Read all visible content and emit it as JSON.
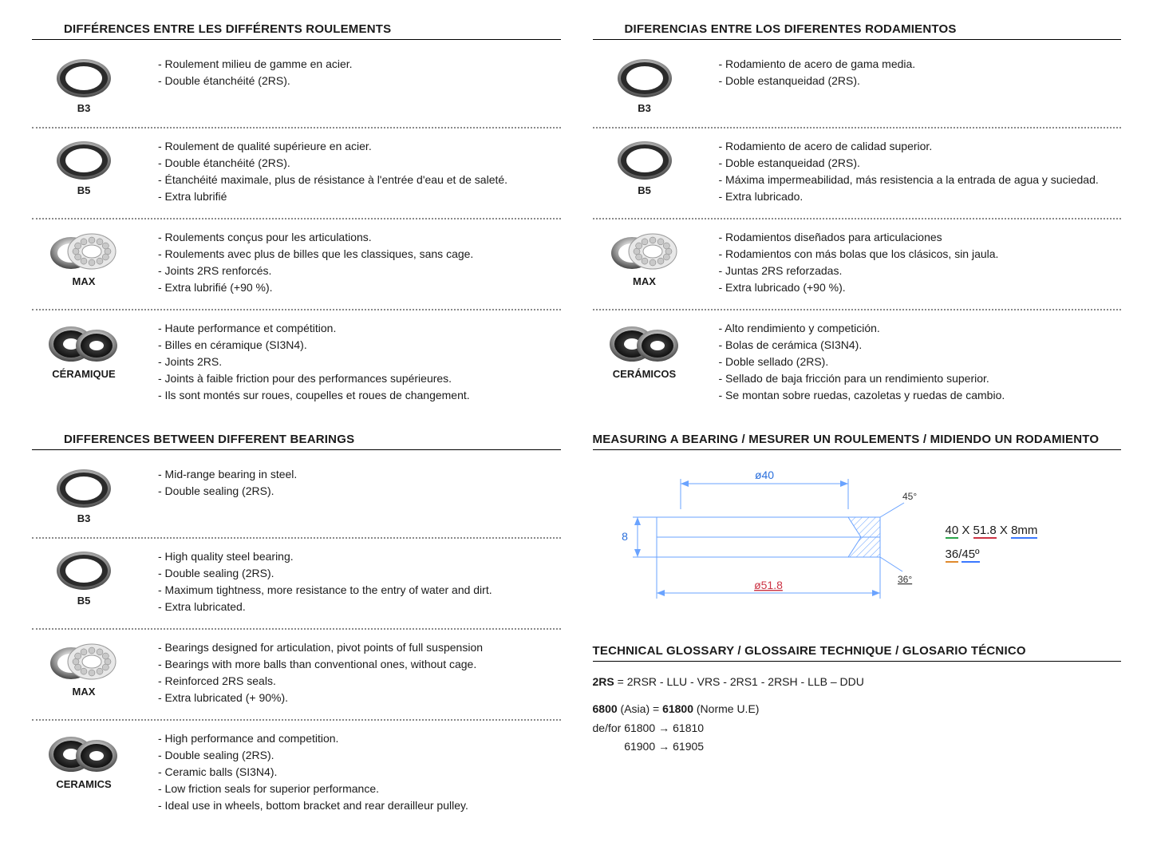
{
  "fr": {
    "title": "DIFFÉRENCES ENTRE LES DIFFÉRENTS ROULEMENTS",
    "items": [
      {
        "label": "B3",
        "icon": "ring-thin",
        "lines": [
          "- Roulement milieu de gamme en acier.",
          "- Double étanchéité (2RS)."
        ]
      },
      {
        "label": "B5",
        "icon": "ring-thin",
        "lines": [
          "- Roulement de qualité supérieure en acier.",
          "- Double étanchéité (2RS).",
          "- Étanchéité maximale, plus de résistance à l'entrée d'eau et de saleté.",
          "- Extra lubrifié"
        ]
      },
      {
        "label": "MAX",
        "icon": "balls",
        "lines": [
          "- Roulements conçus pour les articulations.",
          "- Roulements avec plus de billes que les classiques, sans cage.",
          "- Joints 2RS renforcés.",
          "- Extra lubrifié (+90 %)."
        ]
      },
      {
        "label": "CÉRAMIQUE",
        "icon": "ceramic",
        "lines": [
          "- Haute performance et compétition.",
          "- Billes en céramique (SI3N4).",
          "- Joints 2RS.",
          "- Joints à faible friction pour des performances supérieures.",
          "- Ils sont montés sur roues, coupelles et roues de changement."
        ]
      }
    ]
  },
  "es": {
    "title": "DIFERENCIAS ENTRE LOS DIFERENTES RODAMIENTOS",
    "items": [
      {
        "label": "B3",
        "icon": "ring-thin",
        "lines": [
          "- Rodamiento  de acero de gama media.",
          "- Doble estanqueidad (2RS)."
        ]
      },
      {
        "label": "B5",
        "icon": "ring-thin",
        "lines": [
          "- Rodamiento de acero de calidad superior.",
          "- Doble estanqueidad (2RS).",
          "- Máxima impermeabilidad, más resistencia a la entrada de agua y suciedad.",
          "- Extra lubricado."
        ]
      },
      {
        "label": "MAX",
        "icon": "balls",
        "lines": [
          "- Rodamientos diseñados para articulaciones",
          "- Rodamientos con más bolas que los clásicos, sin jaula.",
          "- Juntas 2RS reforzadas.",
          "- Extra lubricado (+90 %)."
        ]
      },
      {
        "label": "CERÁMICOS",
        "icon": "ceramic",
        "lines": [
          "- Alto rendimiento y competición.",
          "- Bolas de cerámica (SI3N4).",
          "- Doble sellado (2RS).",
          "- Sellado de baja fricción para un rendimiento superior.",
          "- Se montan sobre ruedas, cazoletas y ruedas de cambio."
        ]
      }
    ]
  },
  "en": {
    "title": "DIFFERENCES BETWEEN DIFFERENT BEARINGS",
    "items": [
      {
        "label": "B3",
        "icon": "ring-thin",
        "lines": [
          "- Mid-range bearing in steel.",
          "- Double sealing (2RS)."
        ]
      },
      {
        "label": "B5",
        "icon": "ring-thin",
        "lines": [
          "- High quality steel bearing.",
          "- Double sealing (2RS).",
          "- Maximum tightness, more resistance to the entry of water and dirt.",
          "- Extra lubricated."
        ]
      },
      {
        "label": "MAX",
        "icon": "balls",
        "lines": [
          "- Bearings designed for articulation, pivot points of full suspension",
          "- Bearings with more balls than conventional ones, without cage.",
          "- Reinforced 2RS seals.",
          "- Extra lubricated (+ 90%)."
        ]
      },
      {
        "label": "CERAMICS",
        "icon": "ceramic",
        "lines": [
          "- High performance and competition.",
          "- Double sealing (2RS).",
          "- Ceramic balls (SI3N4).",
          "- Low friction seals for superior performance.",
          "- Ideal use in wheels, bottom bracket and rear derailleur pulley."
        ]
      }
    ]
  },
  "measure": {
    "title": "MEASURING A BEARING / MESURER UN ROULEMENTS / MIDIENDO UN RODAMIENTO",
    "dim_top": "ø40",
    "dim_bottom": "ø51.8",
    "dim_left": "8",
    "dim_right_top": "45°",
    "dim_right_bottom": "36°",
    "text1_a": "40",
    "text1_sep1": " X ",
    "text1_b": "51.8",
    "text1_sep2": " X ",
    "text1_c": "8mm",
    "text2_a": "36",
    "text2_sep": "/",
    "text2_b": "45º"
  },
  "glossary": {
    "title": "TECHNICAL GLOSSARY / GLOSSAIRE TECHNIQUE / GLOSARIO TÉCNICO",
    "line1_a": "2RS",
    "line1_b": " = 2RSR - LLU - VRS - 2RS1 - 2RSH - LLB – DDU",
    "line2_a": "6800",
    "line2_b": " (Asia) = ",
    "line2_c": "61800",
    "line2_d": " (Norme U.E)",
    "line3_a": "de/for 61800",
    "line3_b": "61810",
    "line4_a": "61900",
    "line4_b": "61905"
  }
}
